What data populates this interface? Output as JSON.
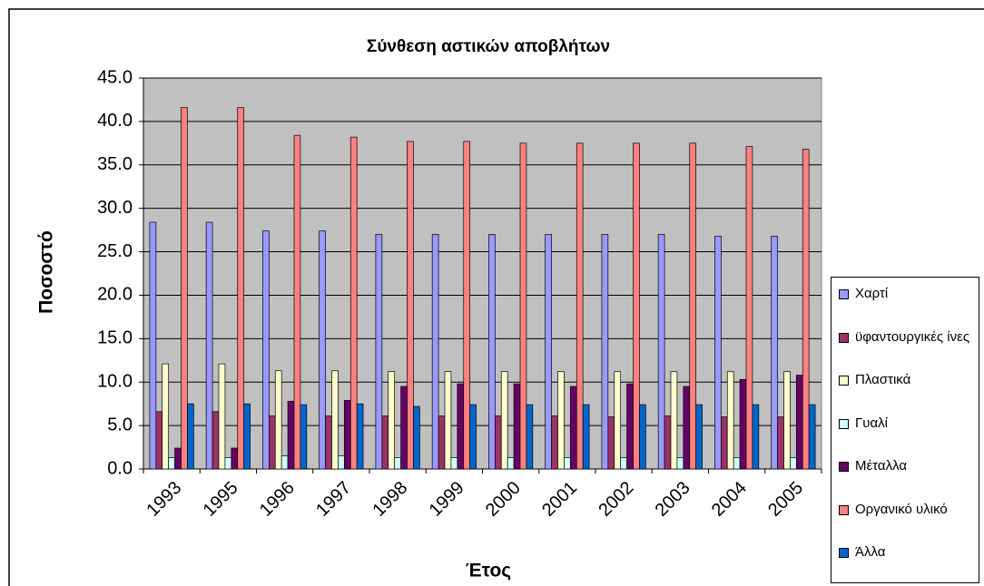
{
  "chart_data": {
    "type": "bar",
    "title": "Σύνθεση αστικών αποβλήτων",
    "x_label": "Έτος",
    "y_label": "Ποσοστό",
    "categories": [
      "1993",
      "1995",
      "1996",
      "1997",
      "1998",
      "1999",
      "2000",
      "2001",
      "2002",
      "2003",
      "2004",
      "2005"
    ],
    "series": [
      {
        "name": "Χαρτί",
        "color": "#9999ff",
        "values": [
          28.4,
          28.4,
          27.4,
          27.4,
          27.0,
          27.0,
          27.0,
          27.0,
          27.0,
          27.0,
          26.8,
          26.8
        ]
      },
      {
        "name": "ϋφαντουργικές ίνες",
        "color": "#993366",
        "values": [
          6.6,
          6.6,
          6.1,
          6.1,
          6.1,
          6.1,
          6.1,
          6.1,
          6.0,
          6.1,
          6.0,
          6.0
        ]
      },
      {
        "name": "Πλαστικά",
        "color": "#ffffcc",
        "values": [
          12.1,
          12.1,
          11.3,
          11.3,
          11.2,
          11.2,
          11.2,
          11.2,
          11.2,
          11.2,
          11.2,
          11.2
        ]
      },
      {
        "name": "Γυαλί",
        "color": "#ccffff",
        "values": [
          1.3,
          1.3,
          1.5,
          1.5,
          1.3,
          1.3,
          1.3,
          1.3,
          1.3,
          1.3,
          1.3,
          1.3
        ]
      },
      {
        "name": "Μέταλλα",
        "color": "#660066",
        "values": [
          2.4,
          2.4,
          7.8,
          7.9,
          9.5,
          9.8,
          9.8,
          9.5,
          9.8,
          9.5,
          10.3,
          10.8
        ]
      },
      {
        "name": "Οργανικό υλικό",
        "color": "#ff8080",
        "values": [
          41.6,
          41.6,
          38.4,
          38.2,
          37.7,
          37.7,
          37.5,
          37.5,
          37.5,
          37.5,
          37.1,
          36.8
        ]
      },
      {
        "name": "Άλλα",
        "color": "#0066cc",
        "values": [
          7.5,
          7.5,
          7.4,
          7.5,
          7.2,
          7.4,
          7.4,
          7.4,
          7.4,
          7.4,
          7.4,
          7.4
        ]
      }
    ],
    "ylim": [
      0,
      45
    ],
    "yticks": [
      {
        "value": 0,
        "label": "0.0"
      },
      {
        "value": 5,
        "label": "5.0"
      },
      {
        "value": 10,
        "label": "10.0"
      },
      {
        "value": 15,
        "label": "15.0"
      },
      {
        "value": 20,
        "label": "20.0"
      },
      {
        "value": 25,
        "label": "25.0"
      },
      {
        "value": 30,
        "label": "30.0"
      },
      {
        "value": 35,
        "label": "35.0"
      },
      {
        "value": 40,
        "label": "40.0"
      },
      {
        "value": 45,
        "label": "45.0"
      }
    ],
    "grid": true,
    "legend": "right"
  }
}
